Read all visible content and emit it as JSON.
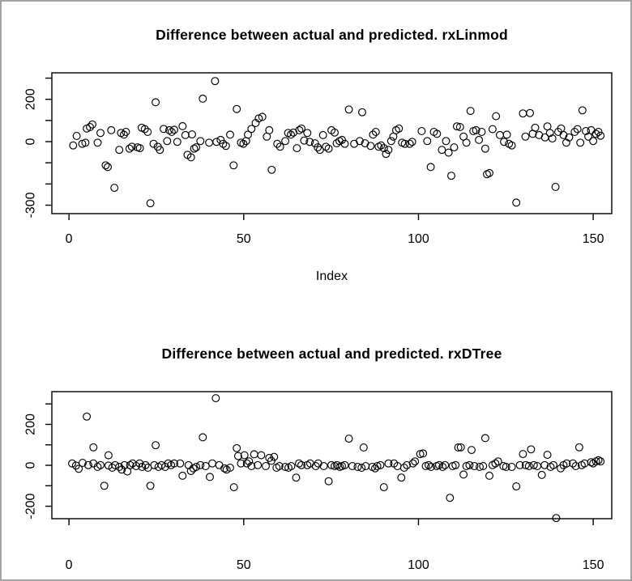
{
  "page": {
    "background": "#ffffff",
    "border_color": "#a3a3a3",
    "plot_color": "#000000"
  },
  "chart_data": [
    {
      "type": "scatter",
      "title": "Difference between actual and predicted. rxLinmod",
      "xlabel": "Index",
      "ylabel": "",
      "marker": "open-circle",
      "color": "#000000",
      "legend": "none",
      "grid": false,
      "xlim": [
        -4.9,
        155.3
      ],
      "ylim": [
        -340,
        325
      ],
      "xticks": [
        0,
        50,
        100,
        150
      ],
      "xtick_labels": [
        "0",
        "50",
        "100",
        "150"
      ],
      "yticks": [
        300,
        200,
        100,
        0,
        -100,
        -200,
        -300
      ],
      "ytick_labels": [
        "",
        "200",
        "",
        "0",
        "",
        "",
        "-300"
      ],
      "points": [
        [
          1.2,
          -18
        ],
        [
          2.2,
          27
        ],
        [
          3.8,
          -10
        ],
        [
          4.7,
          -5
        ],
        [
          5.1,
          62
        ],
        [
          6,
          69
        ],
        [
          6.7,
          81
        ],
        [
          8.2,
          -5
        ],
        [
          9,
          41
        ],
        [
          10.5,
          -112
        ],
        [
          11.1,
          -120
        ],
        [
          12.1,
          54
        ],
        [
          13,
          -218
        ],
        [
          14.4,
          -39
        ],
        [
          14.9,
          41
        ],
        [
          15.7,
          33
        ],
        [
          16.3,
          46
        ],
        [
          17.3,
          -33
        ],
        [
          18,
          -24
        ],
        [
          19.6,
          -27
        ],
        [
          20.3,
          -31
        ],
        [
          20.8,
          66
        ],
        [
          21.7,
          59
        ],
        [
          22.5,
          46
        ],
        [
          23.3,
          -291
        ],
        [
          24.2,
          -10
        ],
        [
          24.8,
          186
        ],
        [
          25.4,
          -24
        ],
        [
          26,
          -39
        ],
        [
          27.1,
          60
        ],
        [
          28.1,
          3
        ],
        [
          28.7,
          54
        ],
        [
          29.4,
          46
        ],
        [
          30.1,
          56
        ],
        [
          31,
          -1
        ],
        [
          32.5,
          73
        ],
        [
          33.3,
          31
        ],
        [
          33.9,
          -62
        ],
        [
          34.9,
          -74
        ],
        [
          35.2,
          34
        ],
        [
          35.8,
          -33
        ],
        [
          36.4,
          -27
        ],
        [
          37.6,
          3
        ],
        [
          38.3,
          203
        ],
        [
          40.1,
          -5
        ],
        [
          41.8,
          286
        ],
        [
          42.2,
          -1
        ],
        [
          43.4,
          8
        ],
        [
          44.1,
          -10
        ],
        [
          44.9,
          -20
        ],
        [
          46.1,
          33
        ],
        [
          47.1,
          -112
        ],
        [
          48,
          154
        ],
        [
          49.2,
          -5
        ],
        [
          49.9,
          -10
        ],
        [
          50.7,
          3
        ],
        [
          51.2,
          33
        ],
        [
          52.2,
          60
        ],
        [
          53.4,
          88
        ],
        [
          54.3,
          110
        ],
        [
          55.3,
          117
        ],
        [
          56.6,
          24
        ],
        [
          57.3,
          54
        ],
        [
          58,
          -133
        ],
        [
          59.6,
          -10
        ],
        [
          60.4,
          -24
        ],
        [
          61.9,
          3
        ],
        [
          62.7,
          41
        ],
        [
          63.5,
          33
        ],
        [
          64.2,
          43
        ],
        [
          65.2,
          -31
        ],
        [
          65.9,
          54
        ],
        [
          66.5,
          62
        ],
        [
          67.3,
          5
        ],
        [
          68.2,
          41
        ],
        [
          68.9,
          -1
        ],
        [
          70.4,
          -8
        ],
        [
          71.2,
          -27
        ],
        [
          71.8,
          -39
        ],
        [
          72.7,
          31
        ],
        [
          73.5,
          -24
        ],
        [
          74.3,
          -33
        ],
        [
          75.1,
          54
        ],
        [
          76,
          43
        ],
        [
          76.6,
          -8
        ],
        [
          77.4,
          3
        ],
        [
          78.1,
          8
        ],
        [
          78.9,
          -10
        ],
        [
          80.1,
          152
        ],
        [
          81.6,
          -10
        ],
        [
          83.2,
          3
        ],
        [
          83.9,
          139
        ],
        [
          84.7,
          -8
        ],
        [
          86.3,
          -20
        ],
        [
          87,
          33
        ],
        [
          87.8,
          46
        ],
        [
          88.6,
          -24
        ],
        [
          89.3,
          -18
        ],
        [
          90.1,
          -31
        ],
        [
          90.7,
          -58
        ],
        [
          91.4,
          -39
        ],
        [
          92.2,
          3
        ],
        [
          92.8,
          24
        ],
        [
          93.6,
          54
        ],
        [
          94.4,
          62
        ],
        [
          95.3,
          -5
        ],
        [
          96.1,
          -10
        ],
        [
          97.5,
          -10
        ],
        [
          98.2,
          -1
        ],
        [
          100.9,
          50
        ],
        [
          102.5,
          3
        ],
        [
          103.5,
          -120
        ],
        [
          104.4,
          46
        ],
        [
          105.3,
          37
        ],
        [
          106.7,
          -39
        ],
        [
          107.9,
          3
        ],
        [
          108.6,
          -52
        ],
        [
          109.4,
          -161
        ],
        [
          110.2,
          -27
        ],
        [
          111,
          72
        ],
        [
          111.9,
          69
        ],
        [
          112.9,
          24
        ],
        [
          113.7,
          -5
        ],
        [
          114.9,
          145
        ],
        [
          115.7,
          50
        ],
        [
          116.5,
          54
        ],
        [
          117.3,
          8
        ],
        [
          118.1,
          46
        ],
        [
          119.1,
          -33
        ],
        [
          119.6,
          -154
        ],
        [
          120.3,
          -148
        ],
        [
          121.2,
          59
        ],
        [
          122.2,
          120
        ],
        [
          123.3,
          31
        ],
        [
          124.5,
          -1
        ],
        [
          125.3,
          33
        ],
        [
          125.9,
          -10
        ],
        [
          126.7,
          -18
        ],
        [
          128,
          -288
        ],
        [
          129.9,
          133
        ],
        [
          130.6,
          24
        ],
        [
          131.9,
          135
        ],
        [
          132.7,
          37
        ],
        [
          133.4,
          66
        ],
        [
          134.5,
          31
        ],
        [
          136.2,
          20
        ],
        [
          136.9,
          72
        ],
        [
          137.6,
          41
        ],
        [
          138.3,
          15
        ],
        [
          139.2,
          -214
        ],
        [
          140,
          46
        ],
        [
          140.8,
          62
        ],
        [
          141.5,
          31
        ],
        [
          142.3,
          -5
        ],
        [
          143.1,
          20
        ],
        [
          144.7,
          46
        ],
        [
          145.5,
          59
        ],
        [
          146.3,
          -5
        ],
        [
          146.9,
          148
        ],
        [
          147.9,
          50
        ],
        [
          148.6,
          24
        ],
        [
          149.4,
          54
        ],
        [
          150,
          3
        ],
        [
          150.8,
          37
        ],
        [
          151.5,
          46
        ],
        [
          152.1,
          28
        ]
      ]
    },
    {
      "type": "scatter",
      "title": "Difference between actual and predicted. rxDTree",
      "xlabel": "",
      "ylabel": "",
      "marker": "open-circle",
      "color": "#000000",
      "legend": "none",
      "grid": false,
      "xlim": [
        -4.9,
        155.3
      ],
      "ylim": [
        -261,
        360
      ],
      "xticks": [
        0,
        50,
        100,
        150
      ],
      "xtick_labels": [
        "0",
        "50",
        "100",
        "150"
      ],
      "yticks": [
        300,
        200,
        100,
        0,
        -100,
        -200
      ],
      "ytick_labels": [
        "",
        "200",
        "",
        "0",
        "",
        "-200"
      ],
      "points": [
        [
          0.9,
          9
        ],
        [
          2,
          -1
        ],
        [
          2.8,
          -17
        ],
        [
          3.9,
          12
        ],
        [
          5.1,
          238
        ],
        [
          5.5,
          1
        ],
        [
          7,
          88
        ],
        [
          7,
          9
        ],
        [
          8.2,
          -8
        ],
        [
          9,
          1
        ],
        [
          10.1,
          -100
        ],
        [
          11.3,
          49
        ],
        [
          11.3,
          -1
        ],
        [
          12.4,
          -12
        ],
        [
          13.2,
          1
        ],
        [
          14.4,
          -8
        ],
        [
          15.1,
          -21
        ],
        [
          15.9,
          1
        ],
        [
          16.7,
          -30
        ],
        [
          17.5,
          1
        ],
        [
          18.2,
          9
        ],
        [
          19.2,
          -4
        ],
        [
          20.2,
          9
        ],
        [
          20.9,
          -8
        ],
        [
          21.9,
          1
        ],
        [
          22.6,
          -12
        ],
        [
          23.3,
          -100
        ],
        [
          24.4,
          1
        ],
        [
          24.8,
          98
        ],
        [
          25.6,
          -8
        ],
        [
          26.5,
          1
        ],
        [
          27.5,
          -8
        ],
        [
          28.4,
          9
        ],
        [
          29.2,
          1
        ],
        [
          30.1,
          9
        ],
        [
          31.8,
          9
        ],
        [
          32.5,
          -51
        ],
        [
          34.2,
          1
        ],
        [
          34.9,
          -28
        ],
        [
          35.6,
          -15
        ],
        [
          36.4,
          -8
        ],
        [
          37.6,
          1
        ],
        [
          38.3,
          137
        ],
        [
          39.1,
          -4
        ],
        [
          40.3,
          -57
        ],
        [
          41,
          9
        ],
        [
          42,
          328
        ],
        [
          43,
          1
        ],
        [
          44.5,
          -15
        ],
        [
          45.1,
          -21
        ],
        [
          46.1,
          -12
        ],
        [
          47.2,
          -107
        ],
        [
          48,
          84
        ],
        [
          48.4,
          45
        ],
        [
          49.2,
          9
        ],
        [
          50.2,
          49
        ],
        [
          50.9,
          9
        ],
        [
          51.5,
          19
        ],
        [
          52.2,
          -4
        ],
        [
          53,
          54
        ],
        [
          54,
          1
        ],
        [
          55,
          49
        ],
        [
          56.3,
          -4
        ],
        [
          57.3,
          36
        ],
        [
          57.9,
          22
        ],
        [
          58.7,
          41
        ],
        [
          59.4,
          -12
        ],
        [
          60.2,
          -4
        ],
        [
          61.9,
          -8
        ],
        [
          62.8,
          -12
        ],
        [
          63.6,
          -4
        ],
        [
          65,
          -60
        ],
        [
          65.8,
          9
        ],
        [
          66.5,
          1
        ],
        [
          68.2,
          1
        ],
        [
          69,
          9
        ],
        [
          70.6,
          -4
        ],
        [
          71.3,
          9
        ],
        [
          72.9,
          -4
        ],
        [
          74.3,
          -78
        ],
        [
          75.1,
          1
        ],
        [
          76,
          -4
        ],
        [
          76.7,
          1
        ],
        [
          77.5,
          -8
        ],
        [
          78.1,
          -4
        ],
        [
          78.9,
          1
        ],
        [
          80.1,
          130
        ],
        [
          81.1,
          -4
        ],
        [
          82.6,
          -8
        ],
        [
          83.7,
          -12
        ],
        [
          84.3,
          87
        ],
        [
          84.9,
          -4
        ],
        [
          86.8,
          -8
        ],
        [
          87.6,
          -15
        ],
        [
          88.2,
          -4
        ],
        [
          89.1,
          1
        ],
        [
          90.1,
          -107
        ],
        [
          91.4,
          9
        ],
        [
          93,
          9
        ],
        [
          94,
          -4
        ],
        [
          95.1,
          -60
        ],
        [
          95.9,
          -12
        ],
        [
          96.7,
          1
        ],
        [
          98.4,
          9
        ],
        [
          99,
          19
        ],
        [
          100.5,
          55
        ],
        [
          101.3,
          58
        ],
        [
          102.1,
          -4
        ],
        [
          102.9,
          1
        ],
        [
          103.6,
          -8
        ],
        [
          105.2,
          -4
        ],
        [
          105.9,
          1
        ],
        [
          106.9,
          -8
        ],
        [
          107.6,
          1
        ],
        [
          109,
          -159
        ],
        [
          109.8,
          -4
        ],
        [
          110.6,
          1
        ],
        [
          111.4,
          87
        ],
        [
          112.1,
          88
        ],
        [
          112.9,
          -45
        ],
        [
          113.7,
          -4
        ],
        [
          114.6,
          1
        ],
        [
          115.2,
          75
        ],
        [
          116,
          -4
        ],
        [
          117.5,
          -8
        ],
        [
          118.5,
          -4
        ],
        [
          119.1,
          133
        ],
        [
          120.3,
          -51
        ],
        [
          121.2,
          1
        ],
        [
          122,
          9
        ],
        [
          122.8,
          19
        ],
        [
          124.3,
          -4
        ],
        [
          125.1,
          -8
        ],
        [
          126.7,
          -8
        ],
        [
          128,
          -103
        ],
        [
          129,
          1
        ],
        [
          129.9,
          55
        ],
        [
          130.7,
          1
        ],
        [
          131.6,
          -4
        ],
        [
          132.2,
          78
        ],
        [
          133,
          1
        ],
        [
          134,
          -4
        ],
        [
          135.3,
          -47
        ],
        [
          136.1,
          1
        ],
        [
          136.9,
          51
        ],
        [
          137.8,
          -8
        ],
        [
          138.6,
          1
        ],
        [
          139.4,
          -258
        ],
        [
          140.7,
          -15
        ],
        [
          141.5,
          1
        ],
        [
          142.4,
          9
        ],
        [
          144.2,
          9
        ],
        [
          145,
          -4
        ],
        [
          146,
          88
        ],
        [
          146.7,
          1
        ],
        [
          147.5,
          9
        ],
        [
          149.4,
          15
        ],
        [
          150,
          9
        ],
        [
          150.8,
          19
        ],
        [
          151.5,
          25
        ],
        [
          152.1,
          19
        ]
      ]
    }
  ]
}
